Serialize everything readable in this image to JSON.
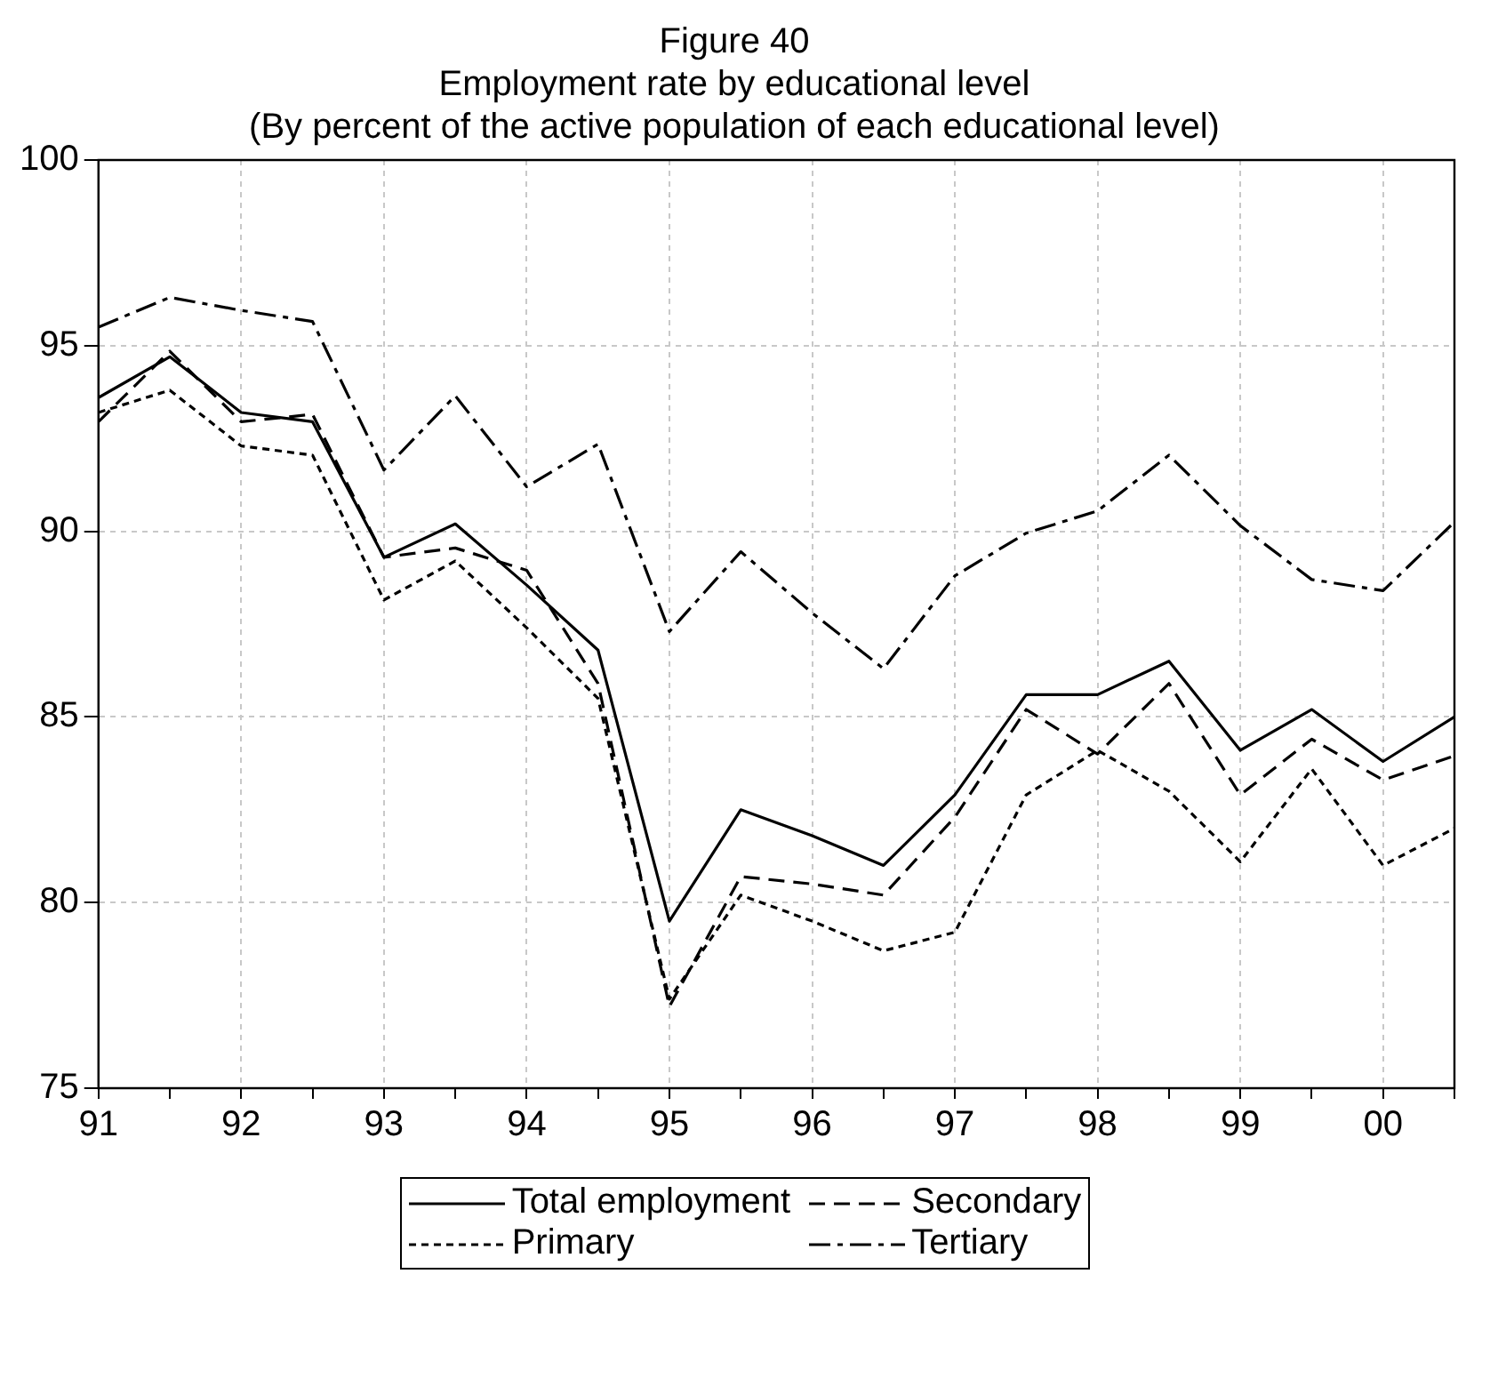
{
  "chart_data": {
    "type": "line",
    "title": "Figure 40",
    "subtitle": "Employment rate by educational level\n(By percent of the active population of each educational level)",
    "x": [
      1991,
      1991.5,
      1992,
      1992.5,
      1993,
      1993.5,
      1994,
      1994.5,
      1995,
      1995.5,
      1996,
      1996.5,
      1997,
      1997.5,
      1998,
      1998.5,
      1999,
      1999.5,
      2000,
      2000.5
    ],
    "series": [
      {
        "name": "Total employment",
        "color": "#000000",
        "line_style": "solid",
        "values": [
          93.6,
          94.7,
          93.2,
          92.95,
          89.3,
          90.2,
          88.55,
          86.8,
          79.5,
          82.5,
          81.8,
          81.0,
          82.9,
          85.6,
          85.6,
          86.5,
          84.1,
          85.2,
          83.8,
          85.0
        ]
      },
      {
        "name": "Secondary",
        "color": "#000000",
        "line_style": "dashed",
        "values": [
          92.95,
          94.85,
          92.95,
          93.15,
          89.3,
          89.55,
          88.95,
          85.9,
          77.2,
          80.7,
          80.5,
          80.2,
          82.3,
          85.2,
          84.0,
          85.9,
          82.9,
          84.4,
          83.3,
          83.95
        ]
      },
      {
        "name": "Primary",
        "color": "#000000",
        "line_style": "dotted",
        "values": [
          93.2,
          93.8,
          92.3,
          92.05,
          88.15,
          89.2,
          87.4,
          85.5,
          77.4,
          80.2,
          79.5,
          78.7,
          79.2,
          82.9,
          84.1,
          83.0,
          81.1,
          83.6,
          81.0,
          82.0
        ]
      },
      {
        "name": "Tertiary",
        "color": "#000000",
        "line_style": "dashdot",
        "values": [
          95.5,
          96.3,
          95.95,
          95.65,
          91.65,
          93.65,
          91.2,
          92.35,
          87.3,
          89.45,
          87.8,
          86.3,
          88.8,
          89.95,
          90.55,
          92.05,
          90.15,
          88.7,
          88.4,
          90.25
        ]
      }
    ],
    "xlim": [
      1991,
      2000.5
    ],
    "xticks": [
      {
        "value": 1991,
        "label": "91"
      },
      {
        "value": 1991.5,
        "label": null
      },
      {
        "value": 1992,
        "label": "92"
      },
      {
        "value": 1992.5,
        "label": null
      },
      {
        "value": 1993,
        "label": "93"
      },
      {
        "value": 1993.5,
        "label": null
      },
      {
        "value": 1994,
        "label": "94"
      },
      {
        "value": 1994.5,
        "label": null
      },
      {
        "value": 1995,
        "label": "95"
      },
      {
        "value": 1995.5,
        "label": null
      },
      {
        "value": 1996,
        "label": "96"
      },
      {
        "value": 1996.5,
        "label": null
      },
      {
        "value": 1997,
        "label": "97"
      },
      {
        "value": 1997.5,
        "label": null
      },
      {
        "value": 1998,
        "label": "98"
      },
      {
        "value": 1998.5,
        "label": null
      },
      {
        "value": 1999,
        "label": "99"
      },
      {
        "value": 1999.5,
        "label": null
      },
      {
        "value": 2000,
        "label": "00"
      },
      {
        "value": 2000.5,
        "label": null
      }
    ],
    "ylim": [
      75,
      100
    ],
    "yticks": [
      75,
      80,
      85,
      90,
      95,
      100
    ],
    "grid": true,
    "legend": "bottom",
    "marker": "none"
  }
}
